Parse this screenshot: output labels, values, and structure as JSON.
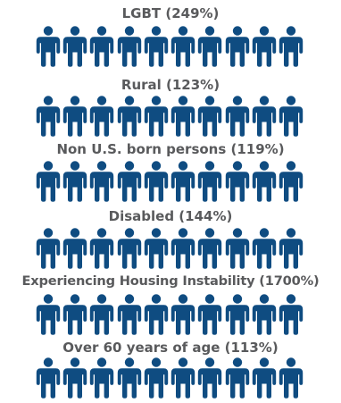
{
  "icon": "person-icon",
  "icon_color": "#0f4c81",
  "text_color": "#595a5c",
  "icons_per_row": 10,
  "groups": [
    {
      "label": "LGBT (249%)"
    },
    {
      "label": "Rural (123%)"
    },
    {
      "label": "Non U.S. born persons (119%)"
    },
    {
      "label": "Disabled (144%)"
    },
    {
      "label": "Experiencing Housing Instability (1700%)"
    },
    {
      "label": "Over 60 years of age (113%)"
    }
  ]
}
